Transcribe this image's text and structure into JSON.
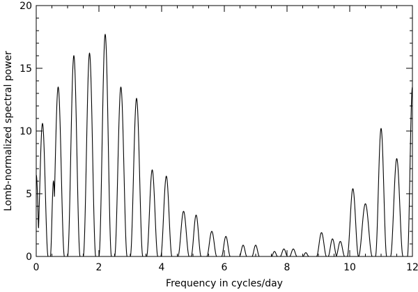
{
  "chart_data": {
    "type": "line",
    "title": "",
    "xlabel": "Frequency in cycles/day",
    "ylabel": "Lomb-normalized spectral power",
    "xlim": [
      0,
      12
    ],
    "ylim": [
      0,
      20
    ],
    "x_ticks": [
      "0",
      "2",
      "4",
      "6",
      "8",
      "10",
      "12"
    ],
    "y_ticks": [
      "0",
      "5",
      "10",
      "15",
      "20"
    ],
    "grid": false,
    "legend": "none",
    "line_color": "#000000",
    "series": [
      {
        "peaks": [
          {
            "x": 0.0,
            "y": 6.5,
            "w": 0.06
          },
          {
            "x": 0.2,
            "y": 10.6,
            "w": 0.09
          },
          {
            "x": 0.55,
            "y": 6.0,
            "w": 0.05
          },
          {
            "x": 0.7,
            "y": 13.5,
            "w": 0.1
          },
          {
            "x": 1.2,
            "y": 16.0,
            "w": 0.1
          },
          {
            "x": 1.7,
            "y": 16.2,
            "w": 0.1
          },
          {
            "x": 2.2,
            "y": 17.7,
            "w": 0.1
          },
          {
            "x": 2.7,
            "y": 13.5,
            "w": 0.1
          },
          {
            "x": 3.2,
            "y": 12.6,
            "w": 0.1
          },
          {
            "x": 3.7,
            "y": 6.9,
            "w": 0.09
          },
          {
            "x": 4.15,
            "y": 6.4,
            "w": 0.09
          },
          {
            "x": 4.7,
            "y": 3.6,
            "w": 0.09
          },
          {
            "x": 5.1,
            "y": 3.3,
            "w": 0.08
          },
          {
            "x": 5.6,
            "y": 2.0,
            "w": 0.08
          },
          {
            "x": 6.05,
            "y": 1.6,
            "w": 0.07
          },
          {
            "x": 6.6,
            "y": 0.9,
            "w": 0.06
          },
          {
            "x": 7.0,
            "y": 0.9,
            "w": 0.06
          },
          {
            "x": 7.6,
            "y": 0.4,
            "w": 0.05
          },
          {
            "x": 7.9,
            "y": 0.6,
            "w": 0.06
          },
          {
            "x": 8.2,
            "y": 0.6,
            "w": 0.06
          },
          {
            "x": 8.6,
            "y": 0.3,
            "w": 0.05
          },
          {
            "x": 9.1,
            "y": 1.9,
            "w": 0.08
          },
          {
            "x": 9.45,
            "y": 1.4,
            "w": 0.07
          },
          {
            "x": 9.7,
            "y": 1.2,
            "w": 0.07
          },
          {
            "x": 10.1,
            "y": 5.4,
            "w": 0.09
          },
          {
            "x": 10.5,
            "y": 4.2,
            "w": 0.11
          },
          {
            "x": 11.0,
            "y": 10.2,
            "w": 0.09
          },
          {
            "x": 11.5,
            "y": 7.8,
            "w": 0.1
          },
          {
            "x": 12.0,
            "y": 13.5,
            "w": 0.08
          }
        ]
      }
    ]
  }
}
